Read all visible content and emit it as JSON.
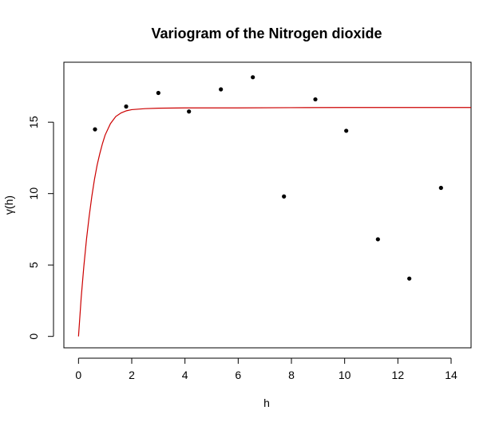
{
  "chart_data": {
    "type": "scatter",
    "title": "Variogram of the Nitrogen dioxide",
    "xlabel": "h",
    "ylabel": "γ(h)",
    "xlim": [
      -0.55,
      14.75
    ],
    "ylim": [
      -0.8,
      19.2
    ],
    "x_ticks": [
      0,
      2,
      4,
      6,
      8,
      10,
      12,
      14
    ],
    "y_ticks": [
      0,
      5,
      10,
      15
    ],
    "grid": false,
    "series": [
      {
        "type": "scatter",
        "color": "#000000",
        "points": [
          [
            0.62,
            14.5
          ],
          [
            1.79,
            16.1
          ],
          [
            3.0,
            17.05
          ],
          [
            4.15,
            15.75
          ],
          [
            5.35,
            17.3
          ],
          [
            6.55,
            18.15
          ],
          [
            7.72,
            9.8
          ],
          [
            8.9,
            16.6
          ],
          [
            10.06,
            14.4
          ],
          [
            11.25,
            6.8
          ],
          [
            12.43,
            4.05
          ],
          [
            13.62,
            10.4
          ]
        ]
      },
      {
        "type": "line",
        "color": "#cc0000",
        "points": [
          [
            0,
            0
          ],
          [
            0.1,
            2.7
          ],
          [
            0.2,
            4.9
          ],
          [
            0.3,
            6.8
          ],
          [
            0.4,
            8.4
          ],
          [
            0.5,
            9.8
          ],
          [
            0.6,
            11.0
          ],
          [
            0.7,
            12.0
          ],
          [
            0.8,
            12.8
          ],
          [
            0.9,
            13.5
          ],
          [
            1.0,
            14.1
          ],
          [
            1.2,
            14.9
          ],
          [
            1.4,
            15.4
          ],
          [
            1.6,
            15.65
          ],
          [
            1.8,
            15.8
          ],
          [
            2.0,
            15.88
          ],
          [
            2.5,
            15.95
          ],
          [
            3.0,
            15.98
          ],
          [
            4.0,
            16.0
          ],
          [
            6.0,
            16.0
          ],
          [
            8.0,
            16.02
          ],
          [
            10.0,
            16.03
          ],
          [
            12.0,
            16.03
          ],
          [
            14.75,
            16.03
          ]
        ]
      }
    ]
  }
}
